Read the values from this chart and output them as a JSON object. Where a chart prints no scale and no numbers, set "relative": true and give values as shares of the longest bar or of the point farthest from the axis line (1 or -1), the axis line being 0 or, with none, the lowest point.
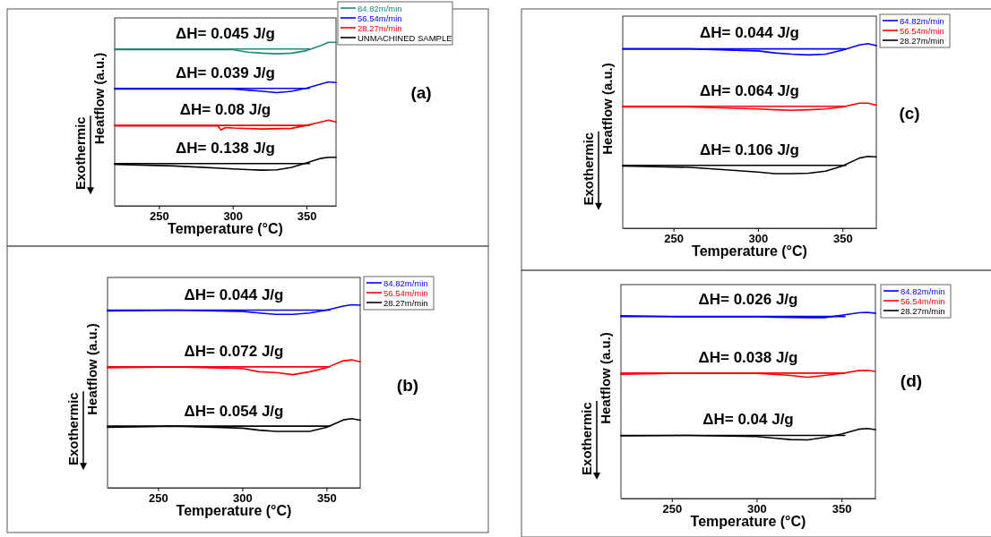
{
  "chart_data": [
    {
      "type": "line",
      "xlabel": "Temperature (°C)",
      "ylabel": "Heatflow (a.u.)",
      "relative": true,
      "legend": "top right",
      "xlim": [
        220,
        370
      ],
      "xticks": [
        250,
        300,
        350
      ],
      "x": [
        220,
        260,
        300,
        310,
        320,
        330,
        340,
        350,
        360,
        365,
        370
      ],
      "series": [
        {
          "name": "84.82m/min",
          "color": "#1b8a7a",
          "values": [
            0.955,
            0.955,
            0.955,
            0.94,
            0.934,
            0.93,
            0.934,
            0.949,
            0.981,
            1,
            1
          ]
        },
        {
          "name": "56.54m/min",
          "color": "#0000ff",
          "values": [
            0.714,
            0.714,
            0.714,
            0.708,
            0.701,
            0.692,
            0.701,
            0.72,
            0.746,
            0.758,
            0.754
          ]
        },
        {
          "name": "28.27m/min",
          "color": "#ff0000",
          "x": [
            220,
            260,
            290,
            292,
            295,
            300,
            320,
            340,
            350,
            360,
            365,
            370
          ],
          "values": [
            0.489,
            0.489,
            0.489,
            0.464,
            0.479,
            0.476,
            0.47,
            0.474,
            0.492,
            0.513,
            0.524,
            0.513
          ]
        },
        {
          "name": "UNMACHINED SAMPLE",
          "color": "#000000",
          "values": [
            0.254,
            0.244,
            0.226,
            0.222,
            0.218,
            0.22,
            0.235,
            0.263,
            0.291,
            0.297,
            0.297
          ]
        },
        {
          "color": "#1b8a7a",
          "x": [
            220,
            352
          ],
          "values": [
            0.959,
            0.959
          ]
        },
        {
          "color": "#0000ff",
          "x": [
            220,
            352
          ],
          "values": [
            0.718,
            0.718
          ]
        },
        {
          "color": "#ff0000",
          "x": [
            220,
            352
          ],
          "values": [
            0.492,
            0.492
          ]
        },
        {
          "color": "#000000",
          "x": [
            220,
            352
          ],
          "values": [
            0.259,
            0.259
          ]
        }
      ],
      "annotations": [
        "ΔH= 0.045 J/g",
        "ΔH= 0.039 J/g",
        "ΔH= 0.08 J/g",
        "ΔH= 0.138 J/g",
        "Exothermic",
        "(a)"
      ]
    },
    {
      "type": "line",
      "xlabel": "Temperature (°C)",
      "ylabel": "Heatflow (a.u.)",
      "relative": true,
      "legend": "top right",
      "xlim": [
        220,
        370
      ],
      "xticks": [
        250,
        300,
        350
      ],
      "x": [
        220,
        260,
        300,
        310,
        320,
        330,
        340,
        350,
        360,
        365,
        370
      ],
      "series": [
        {
          "name": "84.82m/min",
          "color": "#0000ff",
          "values": [
            0.966,
            0.971,
            0.964,
            0.955,
            0.948,
            0.948,
            0.955,
            0.971,
            0.993,
            1,
            0.998
          ]
        },
        {
          "name": "56.54m/min",
          "color": "#ff0000",
          "values": [
            0.656,
            0.661,
            0.652,
            0.634,
            0.63,
            0.618,
            0.634,
            0.656,
            0.694,
            0.699,
            0.688
          ]
        },
        {
          "name": "28.27m/min",
          "color": "#000000",
          "values": [
            0.33,
            0.337,
            0.326,
            0.315,
            0.308,
            0.308,
            0.308,
            0.33,
            0.371,
            0.378,
            0.369
          ]
        },
        {
          "color": "#0000ff",
          "x": [
            220,
            352
          ],
          "values": [
            0.971,
            0.971
          ]
        },
        {
          "color": "#ff0000",
          "x": [
            220,
            352
          ],
          "values": [
            0.661,
            0.661
          ]
        },
        {
          "color": "#000000",
          "x": [
            220,
            352
          ],
          "values": [
            0.337,
            0.337
          ]
        }
      ],
      "annotations": [
        "ΔH= 0.044 J/g",
        "ΔH= 0.072 J/g",
        "ΔH= 0.054 J/g",
        "Exothermic",
        "(b)"
      ]
    },
    {
      "type": "line",
      "xlabel": "Temperature (°C)",
      "ylabel": "Heatflow (a.u.)",
      "relative": true,
      "legend": "top right",
      "xlim": [
        220,
        370
      ],
      "xticks": [
        250,
        300,
        350
      ],
      "x": [
        220,
        260,
        300,
        310,
        320,
        330,
        340,
        350,
        360,
        365,
        370
      ],
      "series": [
        {
          "name": "84.82m/min",
          "color": "#0000ff",
          "values": [
            0.972,
            0.972,
            0.961,
            0.95,
            0.943,
            0.939,
            0.943,
            0.965,
            0.993,
            1,
            0.989
          ]
        },
        {
          "name": "56.54m/min",
          "color": "#ff0000",
          "values": [
            0.657,
            0.657,
            0.646,
            0.642,
            0.639,
            0.642,
            0.646,
            0.657,
            0.678,
            0.678,
            0.667
          ]
        },
        {
          "name": "28.27m/min",
          "color": "#000000",
          "values": [
            0.337,
            0.33,
            0.304,
            0.296,
            0.296,
            0.298,
            0.309,
            0.337,
            0.38,
            0.389,
            0.387
          ]
        },
        {
          "color": "#0000ff",
          "x": [
            220,
            352
          ],
          "values": [
            0.972,
            0.972
          ]
        },
        {
          "color": "#ff0000",
          "x": [
            220,
            352
          ],
          "values": [
            0.661,
            0.661
          ]
        },
        {
          "color": "#000000",
          "x": [
            220,
            352
          ],
          "values": [
            0.341,
            0.341
          ]
        }
      ],
      "annotations": [
        "ΔH= 0.044 J/g",
        "ΔH= 0.064 J/g",
        "ΔH= 0.106 J/g",
        "Exothermic",
        "(c)"
      ]
    },
    {
      "type": "line",
      "xlabel": "Temperature (°C)",
      "ylabel": "Heatflow (a.u.)",
      "relative": true,
      "legend": "top right",
      "xlim": [
        220,
        370
      ],
      "xticks": [
        250,
        300,
        350
      ],
      "x": [
        220,
        260,
        300,
        310,
        320,
        330,
        340,
        350,
        360,
        365,
        370
      ],
      "series": [
        {
          "name": "84.82m/min",
          "color": "#0000ff",
          "values": [
            0.982,
            0.976,
            0.976,
            0.974,
            0.973,
            0.972,
            0.972,
            0.985,
            0.998,
            1,
            0.996
          ]
        },
        {
          "name": "56.54m/min",
          "color": "#ff0000",
          "values": [
            0.667,
            0.674,
            0.672,
            0.667,
            0.661,
            0.652,
            0.661,
            0.672,
            0.687,
            0.689,
            0.683
          ]
        },
        {
          "name": "28.27m/min",
          "color": "#000000",
          "values": [
            0.337,
            0.339,
            0.333,
            0.325,
            0.317,
            0.315,
            0.328,
            0.346,
            0.372,
            0.376,
            0.37
          ]
        },
        {
          "color": "#0000ff",
          "x": [
            220,
            352
          ],
          "values": [
            0.978,
            0.978
          ]
        },
        {
          "color": "#ff0000",
          "x": [
            220,
            352
          ],
          "values": [
            0.674,
            0.674
          ]
        },
        {
          "color": "#000000",
          "x": [
            220,
            352
          ],
          "values": [
            0.339,
            0.339
          ]
        }
      ],
      "annotations": [
        "ΔH= 0.026 J/g",
        "ΔH= 0.038 J/g",
        "ΔH= 0.04 J/g",
        "Exothermic",
        "(d)"
      ]
    }
  ]
}
